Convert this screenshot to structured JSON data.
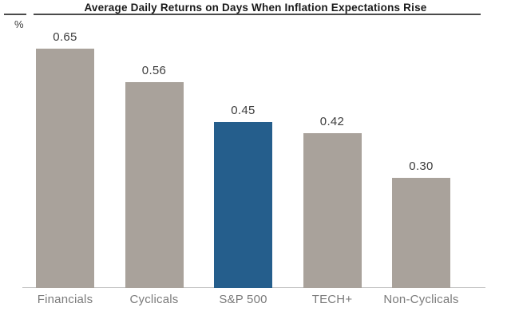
{
  "header": {
    "title": "Average Daily Returns on Days When Inflation Expectations Rise",
    "unit_label": "%"
  },
  "chart_data": {
    "type": "bar",
    "title": "Average Daily Returns on Days When Inflation Expectations Rise",
    "ylabel": "%",
    "categories": [
      "Financials",
      "Cyclicals",
      "S&P 500",
      "TECH+",
      "Non-Cyclicals"
    ],
    "values": [
      0.65,
      0.56,
      0.45,
      0.42,
      0.3
    ],
    "value_labels": [
      "0.65",
      "0.56",
      "0.45",
      "0.42",
      "0.30"
    ],
    "ylim": [
      0,
      0.65
    ],
    "grid": false,
    "legend": "none",
    "highlight_category": "S&P 500",
    "colors": {
      "default_bar": "#a9a29b",
      "highlight_bar": "#255e8c",
      "axis_line": "#c9c9c9",
      "value_label_text": "#3d3d3d",
      "category_label_text": "#7b7b7b",
      "title_text": "#1a1a1a",
      "title_rule": "#4a4a4a"
    }
  }
}
